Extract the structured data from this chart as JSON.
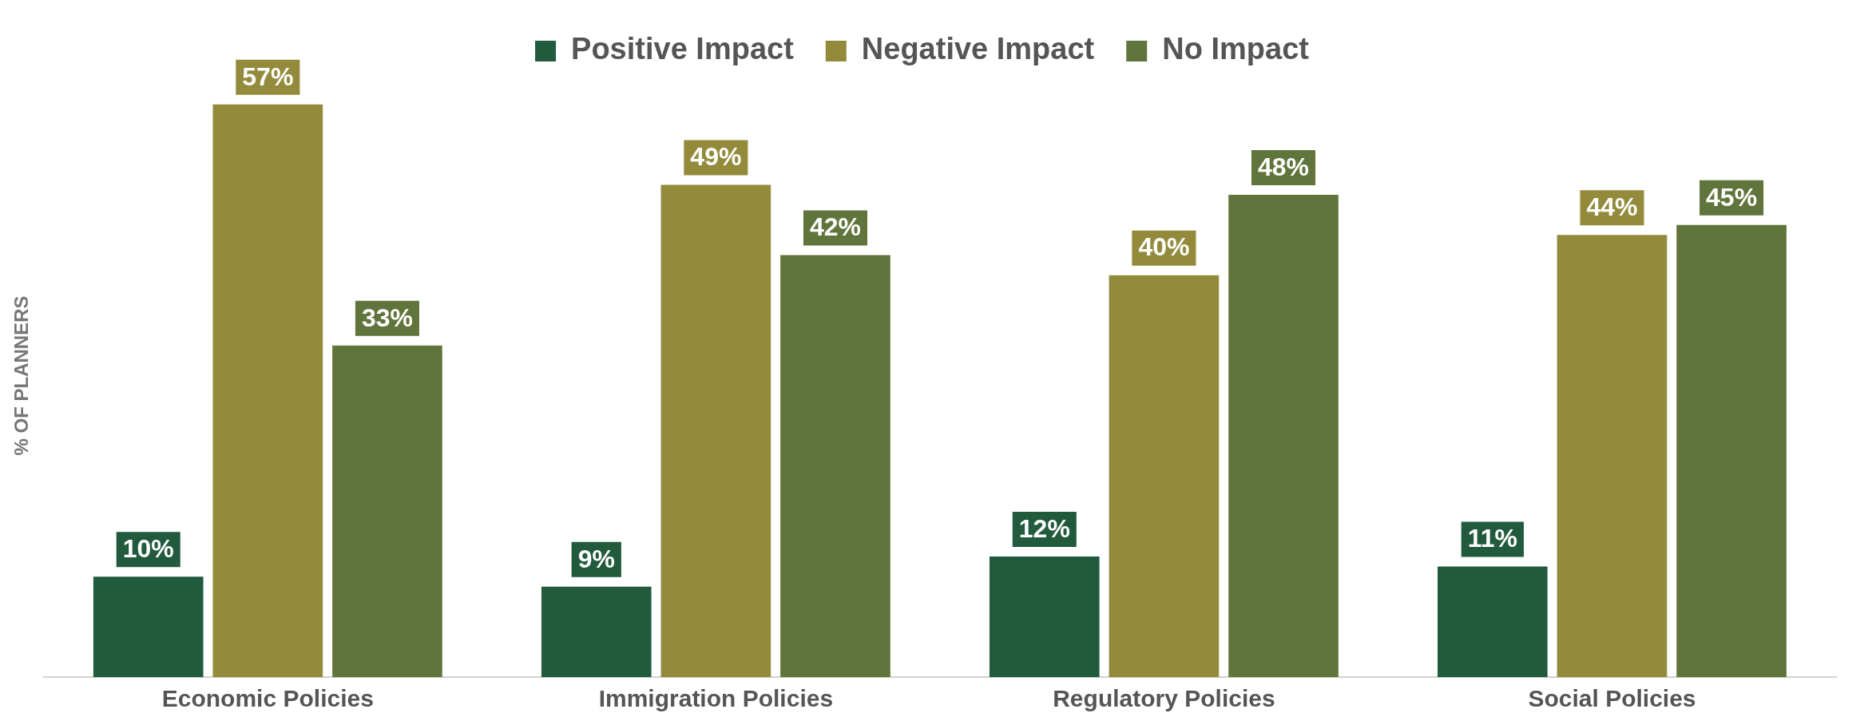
{
  "chart_data": {
    "type": "bar",
    "categories": [
      "Economic Policies",
      "Immigration Policies",
      "Regulatory Policies",
      "Social Policies"
    ],
    "ylabel": "% OF PLANNERS",
    "series": [
      {
        "name": "Positive Impact",
        "color": "#215a3c",
        "values": [
          10,
          9,
          12,
          11
        ],
        "value_labels": [
          "10%",
          "9%",
          "12%",
          "11%"
        ]
      },
      {
        "name": "Negative Impact",
        "color": "#938b3b",
        "values": [
          57,
          49,
          40,
          44
        ],
        "value_labels": [
          "57%",
          "49%",
          "40%",
          "44%"
        ]
      },
      {
        "name": "No Impact",
        "color": "#60753b",
        "values": [
          33,
          42,
          48,
          45
        ],
        "value_labels": [
          "33%",
          "42%",
          "48%",
          "45%"
        ]
      }
    ],
    "legend": "top",
    "grid": false
  }
}
